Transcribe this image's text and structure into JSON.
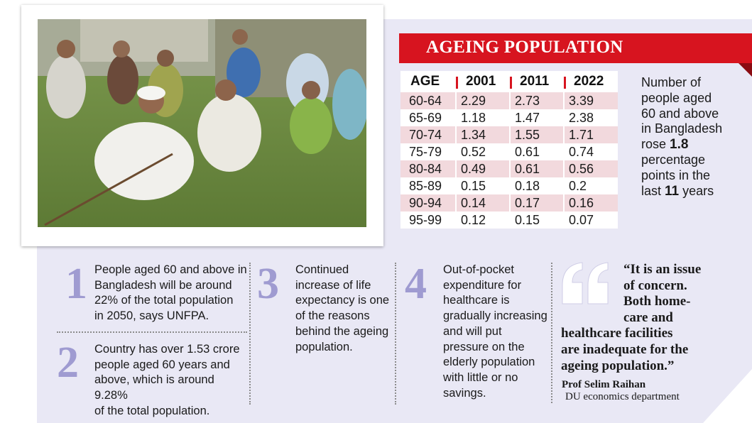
{
  "banner": {
    "title": "AGEING POPULATION"
  },
  "table": {
    "headers": [
      "AGE",
      "2001",
      "2011",
      "2022"
    ],
    "rows": [
      [
        "60-64",
        "2.29",
        "2.73",
        "3.39"
      ],
      [
        "65-69",
        "1.18",
        "1.47",
        "2.38"
      ],
      [
        "70-74",
        "1.34",
        "1.55",
        "1.71"
      ],
      [
        "75-79",
        "0.52",
        "0.61",
        "0.74"
      ],
      [
        "80-84",
        "0.49",
        "0.61",
        "0.56"
      ],
      [
        "85-89",
        "0.15",
        "0.18",
        "0.2"
      ],
      [
        "90-94",
        "0.14",
        "0.17",
        "0.16"
      ],
      [
        "95-99",
        "0.12",
        "0.15",
        "0.07"
      ]
    ]
  },
  "side_note": {
    "lines": [
      "Number of",
      "people aged",
      "60 and above",
      "in Bangladesh"
    ],
    "rose_prefix": "rose ",
    "rose_value": "1.8",
    "line6": "percentage",
    "line7": "points in the",
    "last_prefix": "last ",
    "last_value": "11",
    "last_suffix": " years"
  },
  "facts": [
    {
      "number": "1",
      "lines": [
        "People aged 60 and above in",
        "Bangladesh will be around",
        "22% of the total population",
        "in 2050, says UNFPA."
      ]
    },
    {
      "number": "2",
      "lines": [
        "Country has over 1.53 crore",
        "people aged 60 years and",
        "above, which is around 9.28%",
        "of the total population."
      ]
    },
    {
      "number": "3",
      "lines": [
        "Continued",
        "increase of life",
        "expectancy is one",
        "of the reasons",
        "behind the ageing",
        "population."
      ]
    },
    {
      "number": "4",
      "lines": [
        "Out-of-pocket",
        "expenditure for",
        "healthcare is",
        "gradually increasing",
        "and will put",
        "pressure on the",
        "elderly population",
        "with little or no",
        "savings."
      ]
    }
  ],
  "quote": {
    "lines": [
      "“It is an issue",
      "of concern.",
      "Both home-",
      "care and",
      "healthcare facilities",
      "are inadequate for the",
      "ageing population.”"
    ],
    "author": "Prof Selim Raihan",
    "role": "DU economics department"
  },
  "colors": {
    "accent_red": "#d7141f",
    "numeral_purple": "#9f9bd1",
    "panel_lavender": "#e9e8f5",
    "row_pink": "#f2d9dd"
  }
}
